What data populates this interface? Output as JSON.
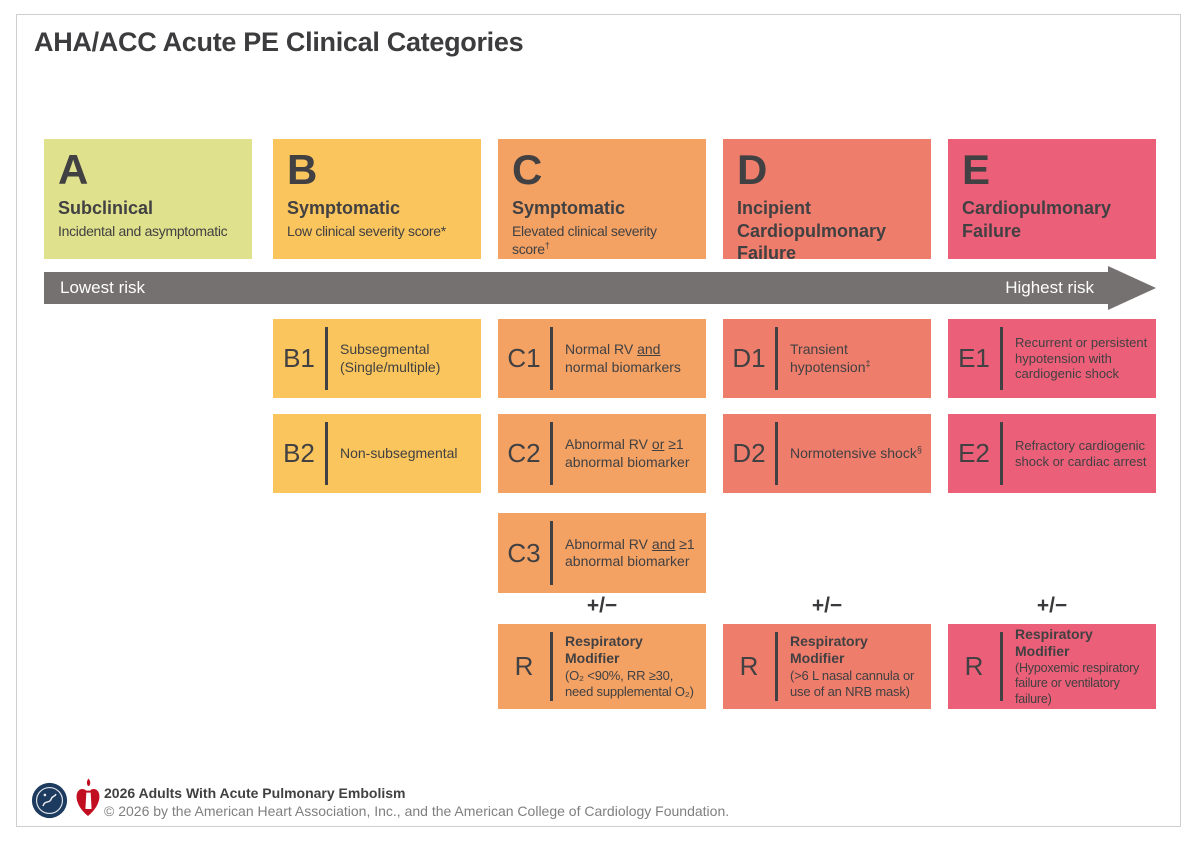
{
  "title": "AHA/ACC Acute PE Clinical Categories",
  "colors": {
    "cat_a": "#dfe18c",
    "cat_b": "#fac55c",
    "cat_c": "#f4a264",
    "cat_d": "#ef7d6c",
    "cat_e": "#ec5f78",
    "arrow": "#757170",
    "ink": "#414042",
    "acc_navy": "#1d3a5f",
    "aha_red": "#c10e21"
  },
  "categories": {
    "a": {
      "letter": "A",
      "name": "Subclinical",
      "desc": [
        {
          "t": "Incidental and asymptomatic"
        }
      ]
    },
    "b": {
      "letter": "B",
      "name": "Symptomatic",
      "desc": [
        {
          "t": "Low clinical severity score*"
        }
      ]
    },
    "c": {
      "letter": "C",
      "name": "Symptomatic",
      "desc": [
        {
          "t": "Elevated clinical severity score"
        },
        {
          "t": "†",
          "sup": true
        }
      ]
    },
    "d": {
      "letter": "D",
      "name": "Incipient Cardiopulmonary Failure",
      "desc": []
    },
    "e": {
      "letter": "E",
      "name": "Cardiopulmonary Failure",
      "desc": []
    }
  },
  "risk_arrow": {
    "left_label": "Lowest risk",
    "right_label": "Highest risk"
  },
  "subcategories": {
    "b1": {
      "code": "B1",
      "text": [
        {
          "t": "Subsegmental (Single/multiple)"
        }
      ]
    },
    "b2": {
      "code": "B2",
      "text": [
        {
          "t": "Non-subsegmental"
        }
      ]
    },
    "c1": {
      "code": "C1",
      "text": [
        {
          "t": "Normal RV "
        },
        {
          "t": "and",
          "u": true
        },
        {
          "t": " normal biomarkers"
        }
      ]
    },
    "c2": {
      "code": "C2",
      "text": [
        {
          "t": "Abnormal RV "
        },
        {
          "t": "or",
          "u": true
        },
        {
          "t": " ≥1 abnormal biomarker"
        }
      ]
    },
    "c3": {
      "code": "C3",
      "text": [
        {
          "t": "Abnormal RV "
        },
        {
          "t": "and",
          "u": true
        },
        {
          "t": " ≥1 abnormal biomarker"
        }
      ]
    },
    "d1": {
      "code": "D1",
      "text": [
        {
          "t": "Transient hypotension"
        },
        {
          "t": "‡",
          "sup": true
        }
      ]
    },
    "d2": {
      "code": "D2",
      "text": [
        {
          "t": "Normotensive shock"
        },
        {
          "t": "§",
          "sup": true
        }
      ]
    },
    "e1": {
      "code": "E1",
      "text": [
        {
          "t": "Recurrent or persistent hypotension with cardiogenic shock"
        }
      ]
    },
    "e2": {
      "code": "E2",
      "text": [
        {
          "t": "Refractory cardiogenic shock or cardiac arrest"
        }
      ]
    }
  },
  "plus_minus": "+/−",
  "modifiers": {
    "c": {
      "code": "R",
      "title": "Respiratory Modifier",
      "detail": "(O₂ <90%, RR ≥30, need supplemental O₂)"
    },
    "d": {
      "code": "R",
      "title": "Respiratory Modifier",
      "detail": "(>6 L nasal cannula or use of an NRB mask)"
    },
    "e": {
      "code": "R",
      "title": "Respiratory Modifier",
      "detail": "(Hypoxemic respiratory failure or ventilatory failure)"
    }
  },
  "footer": {
    "line1": "2026 Adults With Acute Pulmonary Embolism",
    "line2": "© 2026 by the American Heart Association, Inc., and the American College of Cardiology Foundation.",
    "acc_logo": "american-college-of-cardiology-seal",
    "aha_logo": "american-heart-association-heart-and-torch"
  }
}
